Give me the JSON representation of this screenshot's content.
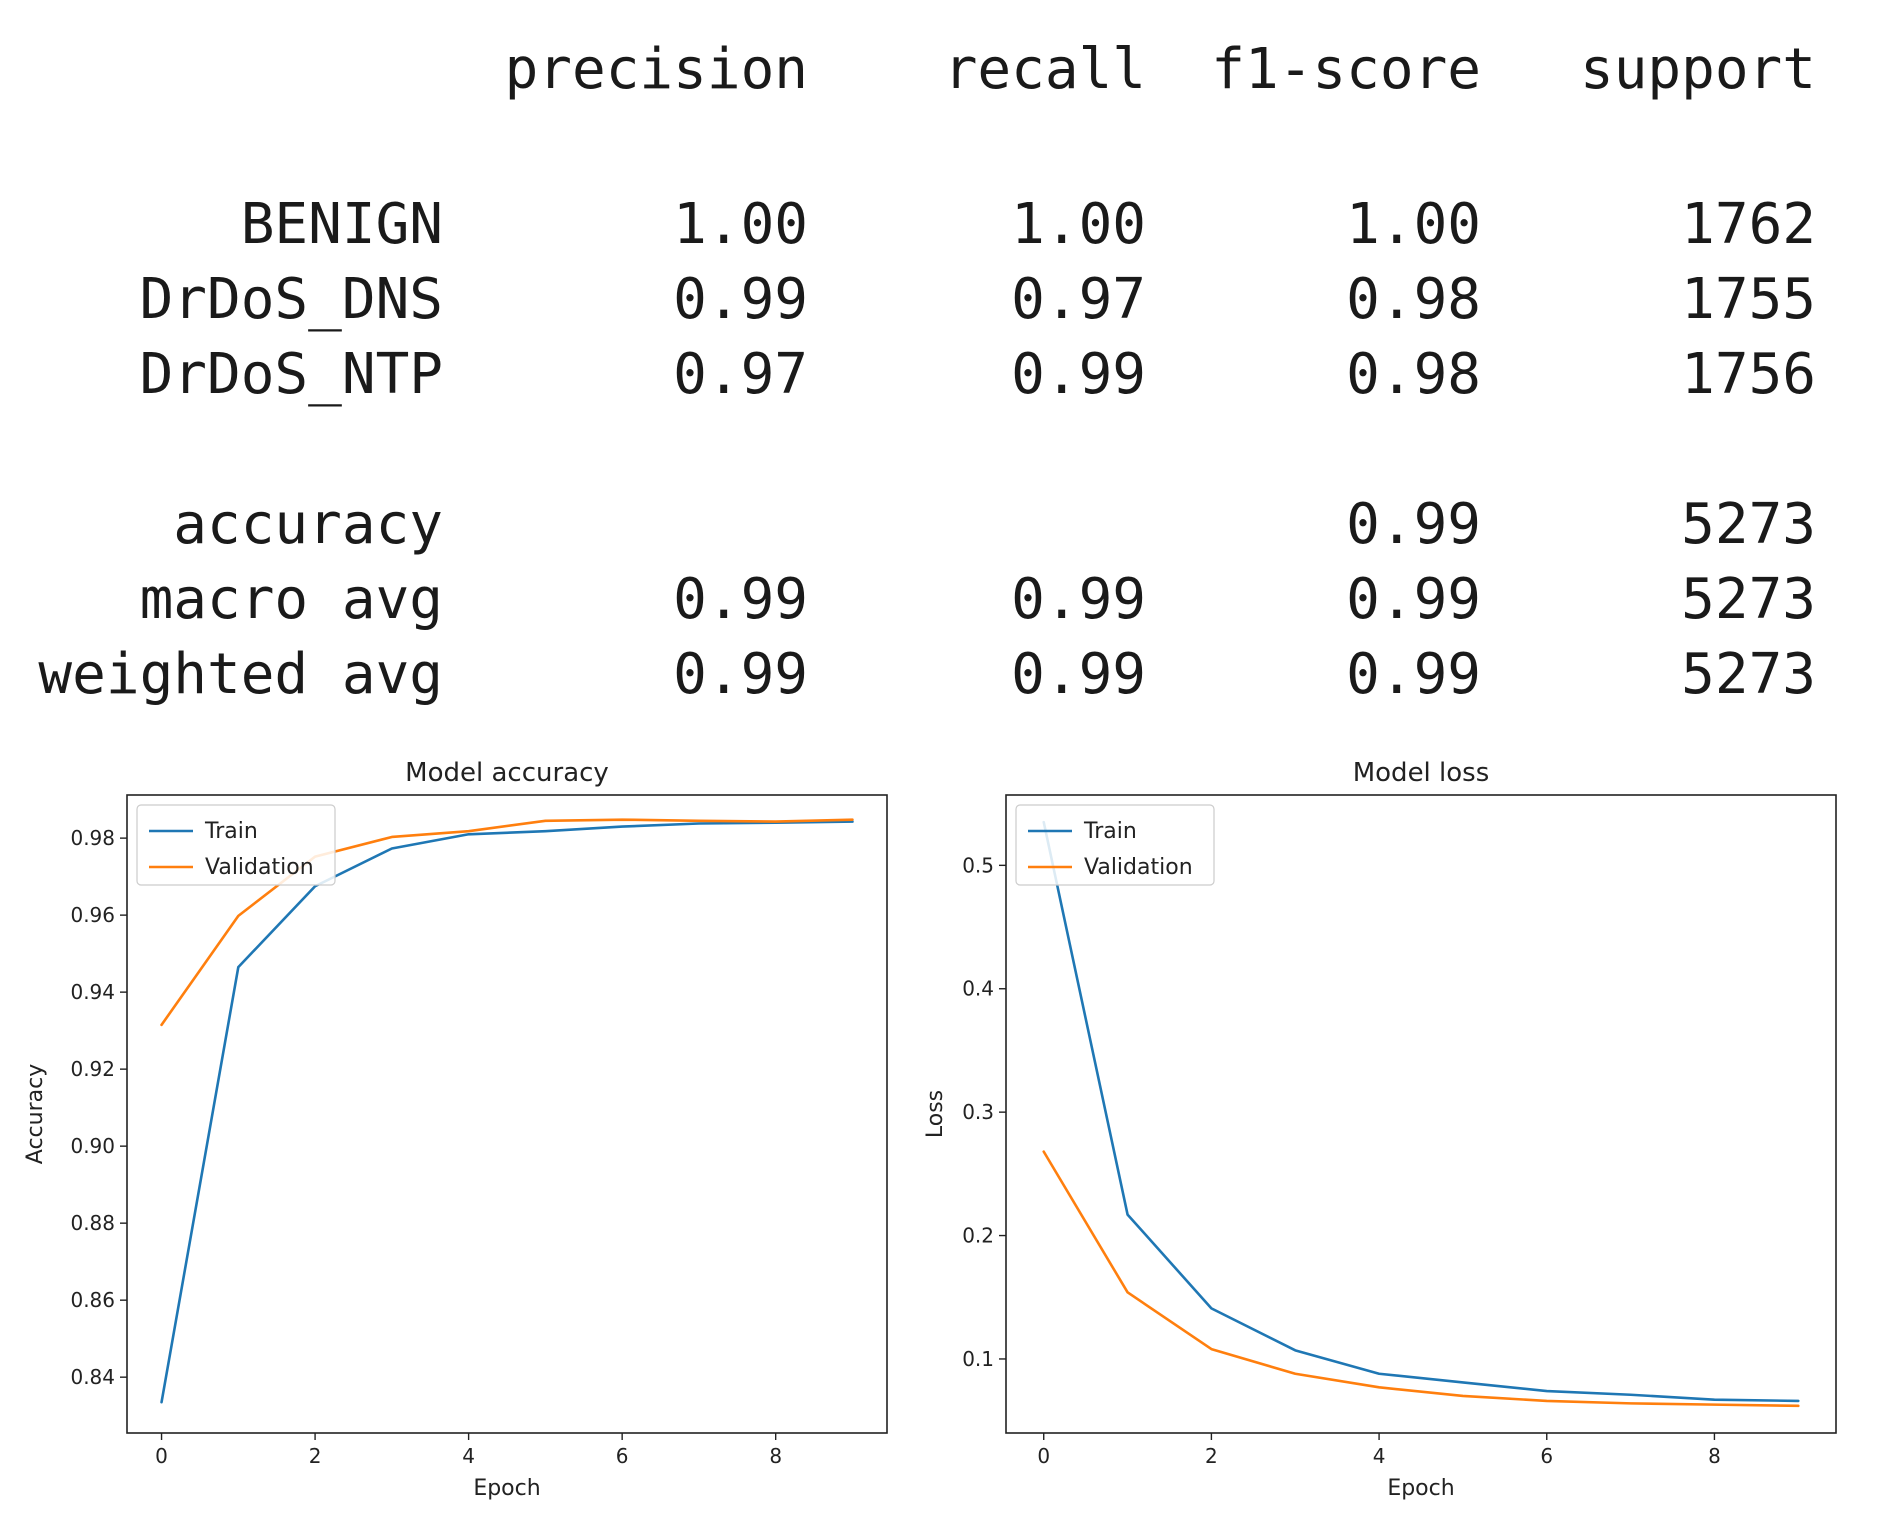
{
  "report": {
    "headers": [
      "precision",
      "recall",
      "f1-score",
      "support"
    ],
    "rows": [
      {
        "label": "BENIGN",
        "precision": "1.00",
        "recall": "1.00",
        "f1": "1.00",
        "support": "1762"
      },
      {
        "label": "DrDoS_DNS",
        "precision": "0.99",
        "recall": "0.97",
        "f1": "0.98",
        "support": "1755"
      },
      {
        "label": "DrDoS_NTP",
        "precision": "0.97",
        "recall": "0.99",
        "f1": "0.98",
        "support": "1756"
      },
      {
        "label": "accuracy",
        "precision": "",
        "recall": "",
        "f1": "0.99",
        "support": "5273"
      },
      {
        "label": "macro avg",
        "precision": "0.99",
        "recall": "0.99",
        "f1": "0.99",
        "support": "5273"
      },
      {
        "label": "weighted avg",
        "precision": "0.99",
        "recall": "0.99",
        "f1": "0.99",
        "support": "5273"
      }
    ]
  },
  "colors": {
    "train": "#1f77b4",
    "validation": "#ff7f0e"
  },
  "chart_data": [
    {
      "type": "line",
      "title": "Model accuracy",
      "xlabel": "Epoch",
      "ylabel": "Accuracy",
      "xlim": [
        -0.45,
        9.45
      ],
      "ylim": [
        0.8255,
        0.9912
      ],
      "xticks": [
        0,
        2,
        4,
        6,
        8
      ],
      "yticks": [
        0.84,
        0.86,
        0.88,
        0.9,
        0.92,
        0.94,
        0.96,
        0.98
      ],
      "ytick_labels": [
        "0.84",
        "0.86",
        "0.88",
        "0.90",
        "0.92",
        "0.94",
        "0.96",
        "0.98"
      ],
      "legend_position": "upper-left",
      "x": [
        0,
        1,
        2,
        3,
        4,
        5,
        6,
        7,
        8,
        9
      ],
      "series": [
        {
          "name": "Train",
          "values": [
            0.8335,
            0.9465,
            0.9675,
            0.9773,
            0.981,
            0.9818,
            0.983,
            0.9838,
            0.984,
            0.9843
          ]
        },
        {
          "name": "Validation",
          "values": [
            0.9315,
            0.9598,
            0.9752,
            0.9803,
            0.9818,
            0.9845,
            0.9848,
            0.9845,
            0.9843,
            0.9848
          ]
        }
      ]
    },
    {
      "type": "line",
      "title": "Model loss",
      "xlabel": "Epoch",
      "ylabel": "Loss",
      "xlim": [
        -0.45,
        9.45
      ],
      "ylim": [
        0.04,
        0.557
      ],
      "xticks": [
        0,
        2,
        4,
        6,
        8
      ],
      "yticks": [
        0.1,
        0.2,
        0.3,
        0.4,
        0.5
      ],
      "ytick_labels": [
        "0.1",
        "0.2",
        "0.3",
        "0.4",
        "0.5"
      ],
      "legend_position": "upper-left",
      "x": [
        0,
        1,
        2,
        3,
        4,
        5,
        6,
        7,
        8,
        9
      ],
      "series": [
        {
          "name": "Train",
          "values": [
            0.535,
            0.217,
            0.141,
            0.107,
            0.088,
            0.081,
            0.074,
            0.071,
            0.067,
            0.066
          ]
        },
        {
          "name": "Validation",
          "values": [
            0.268,
            0.154,
            0.108,
            0.088,
            0.077,
            0.07,
            0.066,
            0.064,
            0.063,
            0.062
          ]
        }
      ]
    }
  ]
}
